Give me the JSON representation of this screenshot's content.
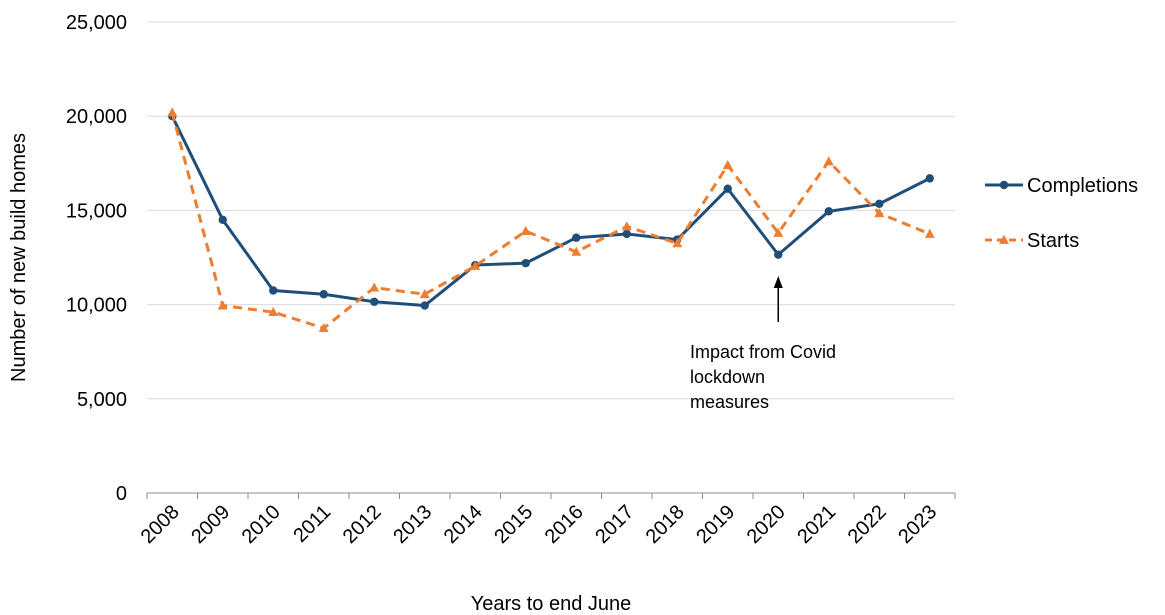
{
  "chart_data": {
    "type": "line",
    "xlabel": "Years to end June",
    "ylabel": "Number of new build homes",
    "ylim": [
      0,
      25000
    ],
    "yticks": [
      "0",
      "5,000",
      "10,000",
      "15,000",
      "20,000",
      "25,000"
    ],
    "categories": [
      "2008",
      "2009",
      "2010",
      "2011",
      "2012",
      "2013",
      "2014",
      "2015",
      "2016",
      "2017",
      "2018",
      "2019",
      "2020",
      "2021",
      "2022",
      "2023"
    ],
    "series": [
      {
        "name": "Completions",
        "color": "#1f4e79",
        "marker": "circle",
        "line_style": "solid",
        "values": [
          20000,
          14500,
          10750,
          10550,
          10150,
          9950,
          12100,
          12200,
          13550,
          13750,
          13450,
          16150,
          12650,
          14950,
          15350,
          16700
        ]
      },
      {
        "name": "Starts",
        "color": "#ed7d31",
        "marker": "triangle",
        "line_style": "dashed",
        "values": [
          20200,
          9950,
          9600,
          8750,
          10900,
          10550,
          12050,
          13900,
          12800,
          14150,
          13250,
          17400,
          13800,
          17600,
          14850,
          13750
        ]
      }
    ],
    "legend_position": "right",
    "grid": true,
    "annotation": {
      "lines": [
        "Impact from Covid",
        "lockdown",
        "measures"
      ],
      "target_category": "2020"
    }
  }
}
